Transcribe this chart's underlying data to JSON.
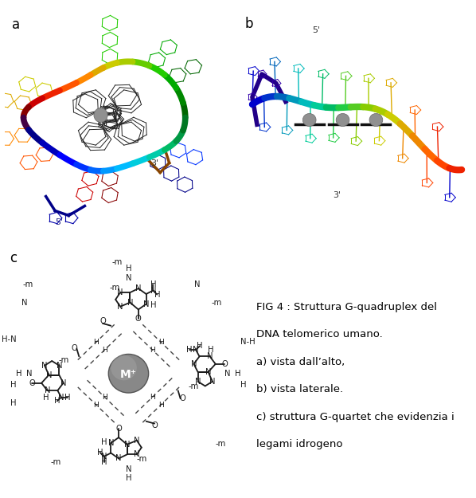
{
  "bg_color": "#ffffff",
  "label_a": "a",
  "label_b": "b",
  "label_c": "c",
  "caption_line1": "FIG 4 : Struttura G-quadruplex del",
  "caption_line2": "DNA telomerico umano.",
  "caption_line3": "a) vista dall’alto,",
  "caption_line4": "b) vista laterale.",
  "caption_line5": "c) struttura G-quartet che evidenzia i",
  "caption_line6": "legami idrogeno",
  "caption_fontsize": 9.5,
  "panel_label_fontsize": 12,
  "ion_label": "M⁺",
  "ion_color": "#888888",
  "figsize": [
    5.98,
    6.25
  ],
  "dpi": 100,
  "rainbow_colors": [
    "#006600",
    "#008800",
    "#00aa00",
    "#22cc00",
    "#66cc00",
    "#aacc00",
    "#cccc00",
    "#ddaa00",
    "#ff8800",
    "#ff5500",
    "#ee2200",
    "#cc0000",
    "#880000",
    "#440044",
    "#000088",
    "#0000bb",
    "#0000ff",
    "#0033ff",
    "#0066ff",
    "#0099ff",
    "#00bbff",
    "#00ccdd",
    "#00ccaa",
    "#00bb66",
    "#009944",
    "#007722"
  ],
  "colors_b": [
    "#0000cc",
    "#0033cc",
    "#0066bb",
    "#0099bb",
    "#00bbbb",
    "#00cc99",
    "#00bb66",
    "#22cc44",
    "#55cc22",
    "#88cc00",
    "#aacc00",
    "#cccc00",
    "#ddaa00",
    "#ee8800",
    "#ff6600",
    "#ff4400",
    "#ee2200"
  ],
  "structure_color": "#1a1a1a",
  "dashed_color": "#444444"
}
